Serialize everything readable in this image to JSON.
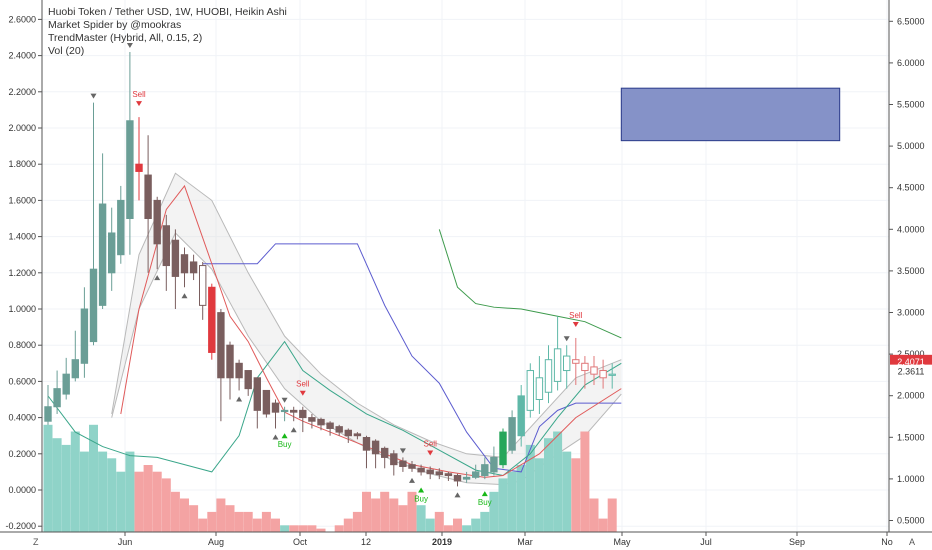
{
  "legend": [
    "Huobi Token / Tether USD, 1W, HUOBI, Heikin Ashi",
    "Market Spider by @mookras",
    "TrendMaster (Hybrid, All, 0.15, 2)",
    "Vol (20)"
  ],
  "corner_left": "Z",
  "corner_right": "A",
  "colors": {
    "bull": "#6a9e96",
    "bull_bright": "#26a65b",
    "bear": "#7a5e5e",
    "bear_bright": "#e0393e",
    "vol_bull": "#8fd3c8",
    "vol_bear": "#f4a3a3",
    "price_badge_1": "#e0393e",
    "price_badge_2": "#ffffff",
    "rect_fill": "#8592c8",
    "rect_stroke": "#2a3a8a"
  },
  "chart_data": {
    "type": "candlestick",
    "x_tick_labels": [
      "Jun",
      "Aug",
      "Oct",
      "12",
      "2019",
      "Mar",
      "May",
      "Jul",
      "Sep",
      "No"
    ],
    "left_axis": {
      "ticks": [
        -0.2,
        0.0,
        0.2,
        0.4,
        0.6,
        0.8,
        1.0,
        1.2,
        1.4,
        1.6,
        1.8,
        2.0,
        2.2,
        2.4,
        2.6
      ],
      "tick_labels": [
        "-0.2000",
        "0.0000",
        "0.2000",
        "0.4000",
        "0.6000",
        "0.8000",
        "1.0000",
        "1.2000",
        "1.4000",
        "1.6000",
        "1.8000",
        "2.0000",
        "2.2000",
        "2.4000",
        "2.6000"
      ]
    },
    "right_axis": {
      "ticks": [
        0.5,
        1.0,
        1.5,
        2.0,
        2.5,
        3.0,
        3.5,
        4.0,
        4.5,
        5.0,
        5.5,
        6.0,
        6.5
      ],
      "tick_labels": [
        "0.5000",
        "1.0000",
        "1.5000",
        "2.0000",
        "2.5000",
        "3.0000",
        "3.5000",
        "4.0000",
        "4.5000",
        "5.0000",
        "5.5000",
        "6.0000",
        "6.5000"
      ],
      "price_labels": [
        {
          "value": 2.4071,
          "label": "2.4071"
        },
        {
          "value": 2.3611,
          "label": "2.3611"
        }
      ]
    },
    "candles": [
      {
        "o": 0.38,
        "h": 0.58,
        "l": 0.36,
        "c": 0.46,
        "bull": true
      },
      {
        "o": 0.46,
        "h": 0.66,
        "l": 0.42,
        "c": 0.56,
        "bull": true
      },
      {
        "o": 0.53,
        "h": 0.73,
        "l": 0.5,
        "c": 0.64,
        "bull": true
      },
      {
        "o": 0.62,
        "h": 0.88,
        "l": 0.6,
        "c": 0.72,
        "bull": true
      },
      {
        "o": 0.7,
        "h": 1.12,
        "l": 0.62,
        "c": 1.0,
        "bull": true
      },
      {
        "o": 0.82,
        "h": 2.14,
        "l": 0.8,
        "c": 1.22,
        "bull": true
      },
      {
        "o": 1.02,
        "h": 1.86,
        "l": 1.0,
        "c": 1.58,
        "bull": true
      },
      {
        "o": 1.2,
        "h": 1.56,
        "l": 1.1,
        "c": 1.42,
        "bull": true
      },
      {
        "o": 1.3,
        "h": 1.68,
        "l": 1.25,
        "c": 1.6,
        "bull": true
      },
      {
        "o": 1.5,
        "h": 2.42,
        "l": 1.3,
        "c": 2.04,
        "bull": true
      },
      {
        "o": 1.8,
        "h": 2.06,
        "l": 1.6,
        "c": 1.76,
        "bull": false,
        "bright": true
      },
      {
        "o": 1.74,
        "h": 1.96,
        "l": 1.2,
        "c": 1.5,
        "bull": false
      },
      {
        "o": 1.6,
        "h": 1.62,
        "l": 1.22,
        "c": 1.36,
        "bull": false
      },
      {
        "o": 1.46,
        "h": 1.52,
        "l": 1.1,
        "c": 1.24,
        "bull": false
      },
      {
        "o": 1.38,
        "h": 1.44,
        "l": 1.0,
        "c": 1.18,
        "bull": false
      },
      {
        "o": 1.3,
        "h": 1.34,
        "l": 1.12,
        "c": 1.2,
        "bull": false
      },
      {
        "o": 1.26,
        "h": 1.3,
        "l": 1.16,
        "c": 1.2,
        "bull": false
      },
      {
        "o": 1.24,
        "h": 1.26,
        "l": 0.94,
        "c": 1.02,
        "bull": false,
        "hollow": true
      },
      {
        "o": 1.12,
        "h": 1.14,
        "l": 0.72,
        "c": 0.76,
        "bull": false,
        "bright": true
      },
      {
        "o": 0.98,
        "h": 1.0,
        "l": 0.38,
        "c": 0.62,
        "bull": false
      },
      {
        "o": 0.8,
        "h": 0.82,
        "l": 0.5,
        "c": 0.62,
        "bull": false
      },
      {
        "o": 0.7,
        "h": 0.72,
        "l": 0.55,
        "c": 0.62,
        "bull": false
      },
      {
        "o": 0.66,
        "h": 0.66,
        "l": 0.52,
        "c": 0.56,
        "bull": false
      },
      {
        "o": 0.62,
        "h": 0.62,
        "l": 0.34,
        "c": 0.44,
        "bull": false
      },
      {
        "o": 0.55,
        "h": 0.55,
        "l": 0.4,
        "c": 0.42,
        "bull": false
      },
      {
        "o": 0.48,
        "h": 0.5,
        "l": 0.34,
        "c": 0.43,
        "bull": false
      },
      {
        "o": 0.44,
        "h": 0.46,
        "l": 0.38,
        "c": 0.44,
        "bull": true
      },
      {
        "o": 0.44,
        "h": 0.46,
        "l": 0.38,
        "c": 0.43,
        "bull": false
      },
      {
        "o": 0.44,
        "h": 0.46,
        "l": 0.32,
        "c": 0.4,
        "bull": false
      },
      {
        "o": 0.4,
        "h": 0.42,
        "l": 0.34,
        "c": 0.38,
        "bull": false
      },
      {
        "o": 0.39,
        "h": 0.4,
        "l": 0.33,
        "c": 0.36,
        "bull": false
      },
      {
        "o": 0.37,
        "h": 0.38,
        "l": 0.3,
        "c": 0.34,
        "bull": false
      },
      {
        "o": 0.35,
        "h": 0.36,
        "l": 0.3,
        "c": 0.32,
        "bull": false
      },
      {
        "o": 0.33,
        "h": 0.34,
        "l": 0.26,
        "c": 0.3,
        "bull": false
      },
      {
        "o": 0.31,
        "h": 0.32,
        "l": 0.28,
        "c": 0.3,
        "bull": false
      },
      {
        "o": 0.29,
        "h": 0.3,
        "l": 0.12,
        "c": 0.22,
        "bull": false
      },
      {
        "o": 0.27,
        "h": 0.28,
        "l": 0.12,
        "c": 0.2,
        "bull": false
      },
      {
        "o": 0.23,
        "h": 0.24,
        "l": 0.12,
        "c": 0.18,
        "bull": false
      },
      {
        "o": 0.2,
        "h": 0.22,
        "l": 0.08,
        "c": 0.14,
        "bull": false
      },
      {
        "o": 0.16,
        "h": 0.18,
        "l": 0.1,
        "c": 0.13,
        "bull": false
      },
      {
        "o": 0.14,
        "h": 0.16,
        "l": 0.1,
        "c": 0.12,
        "bull": false
      },
      {
        "o": 0.12,
        "h": 0.14,
        "l": 0.08,
        "c": 0.1,
        "bull": false
      },
      {
        "o": 0.11,
        "h": 0.13,
        "l": 0.06,
        "c": 0.09,
        "bull": false
      },
      {
        "o": 0.1,
        "h": 0.12,
        "l": 0.06,
        "c": 0.085,
        "bull": false
      },
      {
        "o": 0.09,
        "h": 0.1,
        "l": 0.05,
        "c": 0.08,
        "bull": false
      },
      {
        "o": 0.08,
        "h": 0.09,
        "l": 0.02,
        "c": 0.05,
        "bull": false
      },
      {
        "o": 0.06,
        "h": 0.1,
        "l": 0.04,
        "c": 0.07,
        "bull": true
      },
      {
        "o": 0.07,
        "h": 0.14,
        "l": 0.06,
        "c": 0.1,
        "bull": true
      },
      {
        "o": 0.08,
        "h": 0.18,
        "l": 0.06,
        "c": 0.14,
        "bull": true
      },
      {
        "o": 0.1,
        "h": 0.24,
        "l": 0.08,
        "c": 0.18,
        "bull": true
      },
      {
        "o": 0.14,
        "h": 0.34,
        "l": 0.12,
        "c": 0.32,
        "bull": true,
        "bright": true
      },
      {
        "o": 0.22,
        "h": 0.44,
        "l": 0.2,
        "c": 0.4,
        "bull": true
      },
      {
        "o": 0.3,
        "h": 0.58,
        "l": 0.24,
        "c": 0.52,
        "bull": true
      },
      {
        "o": 0.44,
        "h": 0.7,
        "l": 0.4,
        "c": 0.66,
        "bull": true
      },
      {
        "o": 0.5,
        "h": 0.74,
        "l": 0.42,
        "c": 0.62,
        "bull": true
      },
      {
        "o": 0.54,
        "h": 0.8,
        "l": 0.48,
        "c": 0.72,
        "bull": true
      },
      {
        "o": 0.6,
        "h": 0.96,
        "l": 0.55,
        "c": 0.78,
        "bull": true
      },
      {
        "o": 0.66,
        "h": 0.8,
        "l": 0.56,
        "c": 0.74,
        "bull": true
      },
      {
        "o": 0.72,
        "h": 0.84,
        "l": 0.58,
        "c": 0.7,
        "bull": false
      },
      {
        "o": 0.7,
        "h": 0.74,
        "l": 0.56,
        "c": 0.66,
        "bull": false
      },
      {
        "o": 0.68,
        "h": 0.74,
        "l": 0.58,
        "c": 0.64,
        "bull": false
      },
      {
        "o": 0.66,
        "h": 0.72,
        "l": 0.56,
        "c": 0.62,
        "bull": false
      },
      {
        "o": 0.64,
        "h": 0.7,
        "l": 0.56,
        "c": 0.64,
        "bull": true
      }
    ],
    "volume": [
      {
        "v": 0.32,
        "bull": true
      },
      {
        "v": 0.28,
        "bull": true
      },
      {
        "v": 0.26,
        "bull": true
      },
      {
        "v": 0.3,
        "bull": true
      },
      {
        "v": 0.24,
        "bull": true
      },
      {
        "v": 0.32,
        "bull": true
      },
      {
        "v": 0.24,
        "bull": true
      },
      {
        "v": 0.22,
        "bull": true
      },
      {
        "v": 0.18,
        "bull": true
      },
      {
        "v": 0.24,
        "bull": true
      },
      {
        "v": 0.18,
        "bull": false
      },
      {
        "v": 0.2,
        "bull": false
      },
      {
        "v": 0.18,
        "bull": false
      },
      {
        "v": 0.16,
        "bull": false
      },
      {
        "v": 0.12,
        "bull": false
      },
      {
        "v": 0.1,
        "bull": false
      },
      {
        "v": 0.08,
        "bull": false
      },
      {
        "v": 0.04,
        "bull": false
      },
      {
        "v": 0.06,
        "bull": false
      },
      {
        "v": 0.1,
        "bull": false
      },
      {
        "v": 0.08,
        "bull": false
      },
      {
        "v": 0.06,
        "bull": false
      },
      {
        "v": 0.06,
        "bull": false
      },
      {
        "v": 0.04,
        "bull": false
      },
      {
        "v": 0.06,
        "bull": false
      },
      {
        "v": 0.04,
        "bull": false
      },
      {
        "v": 0.02,
        "bull": true
      },
      {
        "v": 0.02,
        "bull": false
      },
      {
        "v": 0.02,
        "bull": false
      },
      {
        "v": 0.02,
        "bull": false
      },
      {
        "v": 0.01,
        "bull": false
      },
      {
        "v": 0.0,
        "bull": false
      },
      {
        "v": 0.02,
        "bull": false
      },
      {
        "v": 0.04,
        "bull": false
      },
      {
        "v": 0.06,
        "bull": false
      },
      {
        "v": 0.12,
        "bull": false
      },
      {
        "v": 0.1,
        "bull": false
      },
      {
        "v": 0.12,
        "bull": false
      },
      {
        "v": 0.1,
        "bull": false
      },
      {
        "v": 0.08,
        "bull": false
      },
      {
        "v": 0.12,
        "bull": false
      },
      {
        "v": 0.08,
        "bull": true
      },
      {
        "v": 0.04,
        "bull": true
      },
      {
        "v": 0.06,
        "bull": false
      },
      {
        "v": 0.02,
        "bull": false
      },
      {
        "v": 0.04,
        "bull": false
      },
      {
        "v": 0.02,
        "bull": true
      },
      {
        "v": 0.04,
        "bull": true
      },
      {
        "v": 0.06,
        "bull": true
      },
      {
        "v": 0.12,
        "bull": true
      },
      {
        "v": 0.16,
        "bull": true
      },
      {
        "v": 0.18,
        "bull": true
      },
      {
        "v": 0.2,
        "bull": true
      },
      {
        "v": 0.26,
        "bull": true
      },
      {
        "v": 0.22,
        "bull": true
      },
      {
        "v": 0.28,
        "bull": true
      },
      {
        "v": 0.3,
        "bull": true
      },
      {
        "v": 0.24,
        "bull": true
      },
      {
        "v": 0.22,
        "bull": false
      },
      {
        "v": 0.3,
        "bull": false
      },
      {
        "v": 0.1,
        "bull": false
      },
      {
        "v": 0.04,
        "bull": false
      },
      {
        "v": 0.1,
        "bull": false
      }
    ],
    "band_upper": [
      [
        7,
        0.42
      ],
      [
        10,
        1.3
      ],
      [
        14,
        1.75
      ],
      [
        18,
        1.6
      ],
      [
        22,
        1.2
      ],
      [
        26,
        0.85
      ],
      [
        30,
        0.64
      ],
      [
        34,
        0.48
      ],
      [
        38,
        0.36
      ],
      [
        42,
        0.27
      ],
      [
        46,
        0.2
      ],
      [
        50,
        0.18
      ],
      [
        54,
        0.4
      ],
      [
        58,
        0.62
      ],
      [
        63,
        0.72
      ]
    ],
    "band_lower": [
      [
        7,
        0.4
      ],
      [
        10,
        1.0
      ],
      [
        14,
        1.42
      ],
      [
        18,
        1.22
      ],
      [
        22,
        0.85
      ],
      [
        26,
        0.56
      ],
      [
        30,
        0.38
      ],
      [
        34,
        0.26
      ],
      [
        38,
        0.16
      ],
      [
        42,
        0.09
      ],
      [
        46,
        0.04
      ],
      [
        50,
        0.03
      ],
      [
        52,
        0.05
      ],
      [
        56,
        0.2
      ],
      [
        59,
        0.3
      ],
      [
        63,
        0.53
      ]
    ],
    "mid_line": [
      [
        8,
        0.42
      ],
      [
        10,
        1.0
      ],
      [
        13,
        1.55
      ],
      [
        15,
        1.68
      ],
      [
        18,
        1.25
      ],
      [
        20,
        0.96
      ],
      [
        22,
        0.82
      ],
      [
        24,
        0.62
      ],
      [
        26,
        0.43
      ],
      [
        28,
        0.38
      ],
      [
        32,
        0.3
      ],
      [
        36,
        0.22
      ],
      [
        40,
        0.14
      ],
      [
        44,
        0.1
      ],
      [
        48,
        0.07
      ],
      [
        50,
        0.08
      ],
      [
        54,
        0.2
      ],
      [
        58,
        0.4
      ],
      [
        63,
        0.56
      ]
    ],
    "blue_line": [
      [
        17,
        1.25
      ],
      [
        19,
        1.25
      ],
      [
        23,
        1.25
      ],
      [
        25,
        1.36
      ],
      [
        30,
        1.36
      ],
      [
        34,
        1.36
      ],
      [
        37,
        1.02
      ],
      [
        40,
        0.74
      ],
      [
        43,
        0.59
      ],
      [
        46,
        0.32
      ],
      [
        49,
        0.12
      ],
      [
        52,
        0.1
      ],
      [
        54,
        0.35
      ],
      [
        56,
        0.44
      ],
      [
        58,
        0.48
      ],
      [
        63,
        0.48
      ]
    ],
    "green_line": [
      [
        0,
        0.52
      ],
      [
        3,
        0.32
      ],
      [
        6,
        0.24
      ],
      [
        9,
        0.19
      ],
      [
        12,
        0.18
      ],
      [
        15,
        0.14
      ],
      [
        18,
        0.1
      ],
      [
        21,
        0.3
      ],
      [
        23,
        0.62
      ],
      [
        26,
        0.82
      ],
      [
        28,
        0.66
      ],
      [
        31,
        0.55
      ],
      [
        35,
        0.42
      ],
      [
        39,
        0.33
      ],
      [
        43,
        0.22
      ],
      [
        47,
        0.11
      ],
      [
        50,
        0.08
      ],
      [
        53,
        0.2
      ],
      [
        56,
        0.4
      ],
      [
        59,
        0.58
      ],
      [
        63,
        0.7
      ]
    ],
    "trend_line": [
      [
        43,
        1.44
      ],
      [
        45,
        1.12
      ],
      [
        47,
        1.03
      ],
      [
        49,
        1.01
      ],
      [
        52,
        1.0
      ],
      [
        56,
        0.96
      ],
      [
        59,
        0.93
      ],
      [
        63,
        0.84
      ]
    ],
    "signals": [
      {
        "i": 10,
        "type": "sell",
        "label": "Sell"
      },
      {
        "i": 26,
        "type": "buy",
        "label": "Buy"
      },
      {
        "i": 28,
        "type": "sell",
        "label": "Sell"
      },
      {
        "i": 41,
        "type": "buy",
        "label": "Buy"
      },
      {
        "i": 42,
        "type": "sell",
        "label": "Sell"
      },
      {
        "i": 48,
        "type": "buy",
        "label": "Buy"
      },
      {
        "i": 58,
        "type": "sell",
        "label": "Sell"
      }
    ],
    "pivots": [
      {
        "i": 5,
        "dir": "down"
      },
      {
        "i": 9,
        "dir": "down"
      },
      {
        "i": 12,
        "dir": "up"
      },
      {
        "i": 15,
        "dir": "up"
      },
      {
        "i": 21,
        "dir": "up"
      },
      {
        "i": 26,
        "dir": "down"
      },
      {
        "i": 25,
        "dir": "up"
      },
      {
        "i": 27,
        "dir": "up"
      },
      {
        "i": 39,
        "dir": "down"
      },
      {
        "i": 40,
        "dir": "up"
      },
      {
        "i": 45,
        "dir": "up"
      },
      {
        "i": 57,
        "dir": "down"
      }
    ],
    "rect": {
      "i0": 63,
      "i1": 87,
      "p_top": 2.22,
      "p_bottom": 1.93
    }
  }
}
